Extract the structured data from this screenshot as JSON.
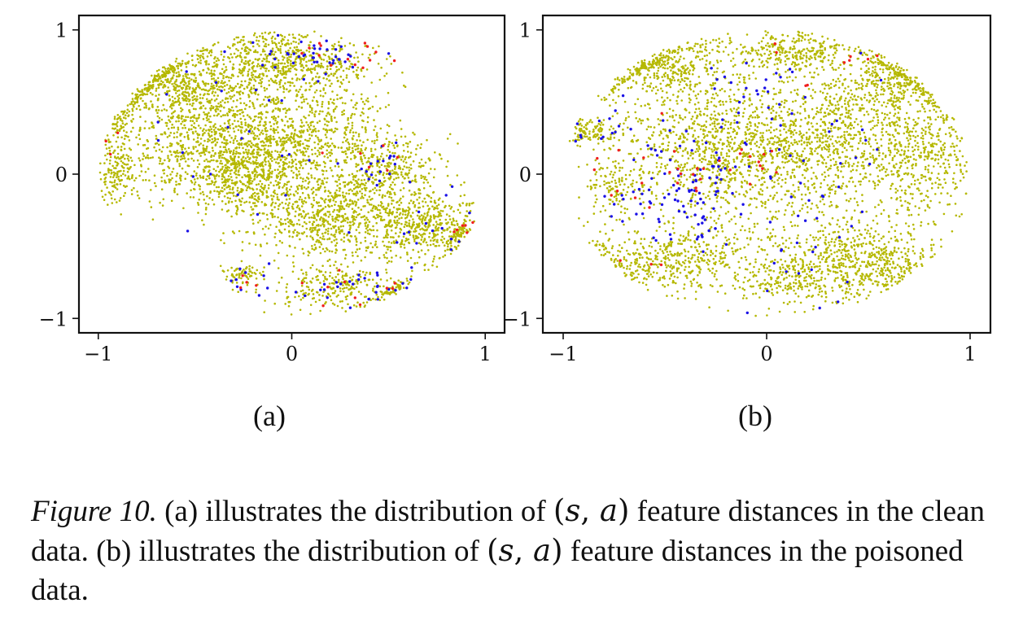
{
  "chart_data": [
    {
      "type": "scatter",
      "panel_label": "(a)",
      "xlim": [
        -1.1,
        1.1
      ],
      "ylim": [
        -1.1,
        1.1
      ],
      "xticks": [
        -1,
        0,
        1
      ],
      "yticks": [
        -1,
        0,
        1
      ],
      "xtick_labels": [
        "−1",
        "0",
        "1"
      ],
      "ytick_labels": [
        "−1",
        "0",
        "1"
      ],
      "grid": false,
      "title": "",
      "xlabel": "",
      "ylabel": "",
      "series": [
        {
          "color": "#b5b800",
          "marker_size": 2.6,
          "clusters": [
            {
              "cx": -0.9,
              "cy": 0.0,
              "sx": 0.06,
              "sy": 0.12,
              "n": 170
            },
            {
              "cx": -0.88,
              "cy": 0.32,
              "sx": 0.05,
              "sy": 0.06,
              "n": 50
            },
            {
              "cx": -0.55,
              "cy": 0.62,
              "sx": 0.2,
              "sy": 0.14,
              "n": 650
            },
            {
              "cx": -0.12,
              "cy": 0.8,
              "sx": 0.13,
              "sy": 0.12,
              "n": 330
            },
            {
              "cx": 0.18,
              "cy": 0.75,
              "sx": 0.14,
              "sy": 0.1,
              "n": 240
            },
            {
              "cx": -0.4,
              "cy": 0.2,
              "sx": 0.22,
              "sy": 0.22,
              "n": 900
            },
            {
              "cx": -0.2,
              "cy": 0.0,
              "sx": 0.14,
              "sy": 0.14,
              "n": 450
            },
            {
              "cx": 0.12,
              "cy": 0.3,
              "sx": 0.18,
              "sy": 0.18,
              "n": 520
            },
            {
              "cx": 0.2,
              "cy": -0.3,
              "sx": 0.2,
              "sy": 0.15,
              "n": 700
            },
            {
              "cx": 0.5,
              "cy": 0.05,
              "sx": 0.14,
              "sy": 0.12,
              "n": 320
            },
            {
              "cx": 0.68,
              "cy": -0.35,
              "sx": 0.15,
              "sy": 0.12,
              "n": 450
            },
            {
              "cx": 0.25,
              "cy": -0.78,
              "sx": 0.18,
              "sy": 0.08,
              "n": 260
            },
            {
              "cx": -0.25,
              "cy": -0.7,
              "sx": 0.05,
              "sy": 0.04,
              "n": 70
            },
            {
              "cx": 0.9,
              "cy": -0.42,
              "sx": 0.04,
              "sy": 0.06,
              "n": 45
            },
            {
              "cx": 0.55,
              "cy": -0.85,
              "sx": 0.05,
              "sy": 0.04,
              "n": 40
            }
          ]
        },
        {
          "color": "#1a10e6",
          "marker_size": 3.4,
          "clusters": [
            {
              "cx": 0.1,
              "cy": 0.8,
              "sx": 0.15,
              "sy": 0.08,
              "n": 40
            },
            {
              "cx": 0.45,
              "cy": 0.05,
              "sx": 0.1,
              "sy": 0.08,
              "n": 18
            },
            {
              "cx": 0.35,
              "cy": -0.8,
              "sx": 0.2,
              "sy": 0.08,
              "n": 30
            },
            {
              "cx": -0.25,
              "cy": -0.72,
              "sx": 0.05,
              "sy": 0.05,
              "n": 8
            },
            {
              "cx": 0.75,
              "cy": -0.4,
              "sx": 0.15,
              "sy": 0.15,
              "n": 15
            },
            {
              "cx": -0.3,
              "cy": 0.3,
              "sx": 0.35,
              "sy": 0.35,
              "n": 25
            }
          ]
        },
        {
          "color": "#f01f1f",
          "marker_size": 3.4,
          "clusters": [
            {
              "cx": 0.25,
              "cy": 0.8,
              "sx": 0.12,
              "sy": 0.07,
              "n": 14
            },
            {
              "cx": 0.9,
              "cy": -0.4,
              "sx": 0.04,
              "sy": 0.06,
              "n": 6
            },
            {
              "cx": 0.3,
              "cy": -0.75,
              "sx": 0.2,
              "sy": 0.08,
              "n": 10
            },
            {
              "cx": -0.25,
              "cy": -0.75,
              "sx": 0.04,
              "sy": 0.03,
              "n": 4
            },
            {
              "cx": 0.4,
              "cy": 0.05,
              "sx": 0.12,
              "sy": 0.08,
              "n": 6
            },
            {
              "cx": -0.95,
              "cy": 0.25,
              "sx": 0.03,
              "sy": 0.05,
              "n": 3
            }
          ]
        }
      ]
    },
    {
      "type": "scatter",
      "panel_label": "(b)",
      "xlim": [
        -1.1,
        1.1
      ],
      "ylim": [
        -1.1,
        1.1
      ],
      "xticks": [
        -1,
        0,
        1
      ],
      "yticks": [
        -1,
        0,
        1
      ],
      "xtick_labels": [
        "−1",
        "0",
        "1"
      ],
      "ytick_labels": [
        "−1",
        "0",
        "1"
      ],
      "grid": false,
      "title": "",
      "xlabel": "",
      "ylabel": "",
      "series": [
        {
          "color": "#b5b800",
          "marker_size": 2.6,
          "clusters": [
            {
              "cx": -0.85,
              "cy": 0.3,
              "sx": 0.1,
              "sy": 0.05,
              "n": 120
            },
            {
              "cx": -0.5,
              "cy": 0.75,
              "sx": 0.18,
              "sy": 0.12,
              "n": 420
            },
            {
              "cx": 0.1,
              "cy": 0.85,
              "sx": 0.15,
              "sy": 0.08,
              "n": 280
            },
            {
              "cx": 0.62,
              "cy": 0.65,
              "sx": 0.16,
              "sy": 0.15,
              "n": 420
            },
            {
              "cx": 0.75,
              "cy": 0.1,
              "sx": 0.14,
              "sy": 0.2,
              "n": 420
            },
            {
              "cx": 0.45,
              "cy": -0.6,
              "sx": 0.2,
              "sy": 0.14,
              "n": 620
            },
            {
              "cx": -0.45,
              "cy": -0.6,
              "sx": 0.24,
              "sy": 0.12,
              "n": 500
            },
            {
              "cx": 0.0,
              "cy": 0.1,
              "sx": 0.32,
              "sy": 0.28,
              "n": 1100
            },
            {
              "cx": -0.35,
              "cy": 0.25,
              "sx": 0.18,
              "sy": 0.2,
              "n": 350
            },
            {
              "cx": 0.3,
              "cy": 0.3,
              "sx": 0.2,
              "sy": 0.2,
              "n": 420
            },
            {
              "cx": -0.75,
              "cy": -0.1,
              "sx": 0.08,
              "sy": 0.12,
              "n": 120
            },
            {
              "cx": 0.1,
              "cy": -0.75,
              "sx": 0.12,
              "sy": 0.08,
              "n": 160
            }
          ]
        },
        {
          "color": "#1a10e6",
          "marker_size": 3.4,
          "clusters": [
            {
              "cx": -0.4,
              "cy": -0.1,
              "sx": 0.2,
              "sy": 0.2,
              "n": 110
            },
            {
              "cx": -0.05,
              "cy": 0.55,
              "sx": 0.12,
              "sy": 0.1,
              "n": 20
            },
            {
              "cx": -0.8,
              "cy": 0.3,
              "sx": 0.1,
              "sy": 0.06,
              "n": 12
            },
            {
              "cx": 0.15,
              "cy": -0.3,
              "sx": 0.2,
              "sy": 0.3,
              "n": 30
            },
            {
              "cx": 0.3,
              "cy": 0.5,
              "sx": 0.25,
              "sy": 0.25,
              "n": 18
            }
          ]
        },
        {
          "color": "#f01f1f",
          "marker_size": 3.4,
          "clusters": [
            {
              "cx": -0.45,
              "cy": -0.05,
              "sx": 0.2,
              "sy": 0.2,
              "n": 25
            },
            {
              "cx": -0.1,
              "cy": 0.1,
              "sx": 0.1,
              "sy": 0.1,
              "n": 8
            },
            {
              "cx": 0.4,
              "cy": 0.8,
              "sx": 0.1,
              "sy": 0.05,
              "n": 5
            },
            {
              "cx": -0.6,
              "cy": -0.65,
              "sx": 0.1,
              "sy": 0.05,
              "n": 3
            },
            {
              "cx": 0.1,
              "cy": 0.7,
              "sx": 0.1,
              "sy": 0.1,
              "n": 4
            }
          ]
        }
      ]
    }
  ],
  "labels": {
    "sub_a": "(a)",
    "sub_b": "(b)"
  },
  "caption": {
    "fig_num": "Figure 10.",
    "part1": " (a) illustrates the distribution of ",
    "part2": " feature distances in the clean data. (b) illustrates the distribution of ",
    "part3": " feature distances in the poisoned data.",
    "math_open": "(",
    "math_s": "s",
    "math_comma": ", ",
    "math_a": "a",
    "math_close": ")"
  }
}
